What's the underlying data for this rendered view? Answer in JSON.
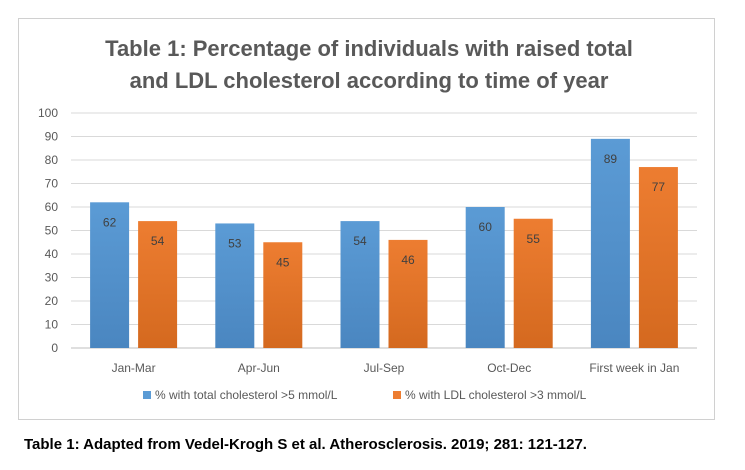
{
  "chart_data": {
    "type": "bar",
    "title_lines": [
      "Table 1: Percentage of individuals with raised total",
      "and LDL cholesterol according to time of year"
    ],
    "categories": [
      "Jan-Mar",
      "Apr-Jun",
      "Jul-Sep",
      "Oct-Dec",
      "First week in Jan"
    ],
    "series": [
      {
        "name": "% with total cholesterol >5 mmol/L",
        "values": [
          62,
          53,
          54,
          60,
          89
        ],
        "color": "#5b9bd5",
        "color_dark": "#4a86c0"
      },
      {
        "name": "% with LDL cholesterol >3 mmol/L",
        "values": [
          54,
          45,
          46,
          55,
          77
        ],
        "color": "#ed7d31",
        "color_dark": "#d4691f"
      }
    ],
    "ylim": [
      0,
      100
    ],
    "ystep": 10,
    "grid": true,
    "data_labels": true,
    "legend_position": "bottom"
  },
  "caption": "Table 1: Adapted from Vedel-Krogh S et al. Atherosclerosis. 2019; 281: 121-127."
}
